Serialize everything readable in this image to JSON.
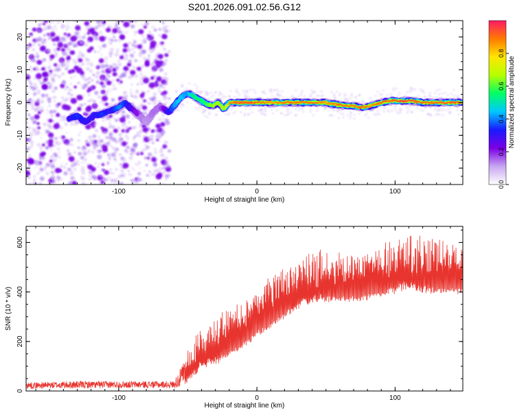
{
  "title": "S201.2026.091.02.56.G12",
  "colors": {
    "snr_line": "#e8342e",
    "axis": "#000000",
    "colormap": [
      "#ffffff",
      "#c8a6f0",
      "#7a00e6",
      "#1a1aff",
      "#00c8ff",
      "#00ff66",
      "#b6ff00",
      "#ffe600",
      "#ff7a00",
      "#ff1a66"
    ]
  },
  "chart_data": [
    {
      "type": "heatmap",
      "name": "spectrogram",
      "xlabel": "Height of straight line (km)",
      "ylabel": "Frequency (Hz)",
      "xlim": [
        -167,
        149
      ],
      "ylim": [
        -25,
        25
      ],
      "x_ticks": [
        -100,
        0,
        100
      ],
      "y_ticks": [
        -20,
        -10,
        0,
        10,
        20
      ],
      "ridge": {
        "x": [
          -136,
          -130,
          -124,
          -118,
          -112,
          -106,
          -100,
          -96,
          -90,
          -85,
          -80,
          -75,
          -70,
          -65,
          -62,
          -58,
          -55,
          -51,
          -48,
          -44,
          -40,
          -36,
          -32,
          -28,
          -24,
          -20,
          -10,
          0,
          10,
          20,
          30,
          40,
          50,
          60,
          70,
          76,
          82,
          90,
          96,
          104,
          112,
          120,
          130,
          140,
          148
        ],
        "y": [
          -5,
          -4,
          -6,
          -4,
          -3.5,
          -2.5,
          -1.5,
          0,
          -2,
          -4,
          -6,
          -3,
          -1,
          -3,
          -2,
          0,
          1.5,
          2.8,
          2.5,
          1.5,
          0.5,
          -0.5,
          -1,
          0,
          -2,
          0,
          0,
          0,
          0,
          0,
          0,
          0,
          0,
          -0.8,
          -1,
          -1.5,
          -1,
          0,
          0.5,
          0.5,
          0.5,
          0,
          0,
          0,
          0
        ],
        "amplitude": [
          0.3,
          0.35,
          0.3,
          0.3,
          0.35,
          0.3,
          0.4,
          0.35,
          0.25,
          0.15,
          0.12,
          0.15,
          0.15,
          0.3,
          0.35,
          0.45,
          0.45,
          0.4,
          0.5,
          0.55,
          0.55,
          0.6,
          0.65,
          0.7,
          0.65,
          0.9,
          0.92,
          0.9,
          0.85,
          0.9,
          0.88,
          0.9,
          0.85,
          0.9,
          0.88,
          0.9,
          0.85,
          0.92,
          0.9,
          0.95,
          0.92,
          0.9,
          0.9,
          0.92,
          0.9
        ]
      },
      "colorbar": {
        "label": "Normalized spectral amplitude",
        "range": [
          0,
          1
        ],
        "ticks": [
          0.0,
          0.2,
          0.4,
          0.6,
          0.8
        ],
        "tick_labels": [
          "0.0",
          "0.2",
          "0.4",
          "0.6",
          "0.8"
        ]
      }
    },
    {
      "type": "line",
      "name": "snr",
      "xlabel": "Height of straight line (km)",
      "ylabel": "SNR (10 * v/v)",
      "xlim": [
        -167,
        149
      ],
      "ylim": [
        0,
        665
      ],
      "x_ticks": [
        -100,
        0,
        100
      ],
      "y_ticks": [
        0,
        200,
        400,
        600
      ],
      "envelope": {
        "x": [
          -167,
          -130,
          -100,
          -60,
          -52,
          -50,
          -45,
          -40,
          -35,
          -30,
          -25,
          -20,
          -15,
          -10,
          -5,
          0,
          10,
          20,
          30,
          40,
          50,
          60,
          70,
          80,
          90,
          100,
          110,
          120,
          130,
          140,
          149
        ],
        "low": [
          10,
          10,
          12,
          12,
          15,
          30,
          50,
          70,
          80,
          90,
          110,
          130,
          145,
          170,
          190,
          220,
          250,
          280,
          310,
          330,
          345,
          355,
          360,
          365,
          370,
          375,
          375,
          380,
          385,
          390,
          390
        ],
        "high": [
          35,
          40,
          40,
          40,
          130,
          180,
          210,
          260,
          270,
          300,
          330,
          340,
          360,
          380,
          420,
          450,
          480,
          500,
          540,
          560,
          570,
          580,
          600,
          600,
          610,
          610,
          620,
          610,
          620,
          630,
          620
        ]
      }
    }
  ]
}
